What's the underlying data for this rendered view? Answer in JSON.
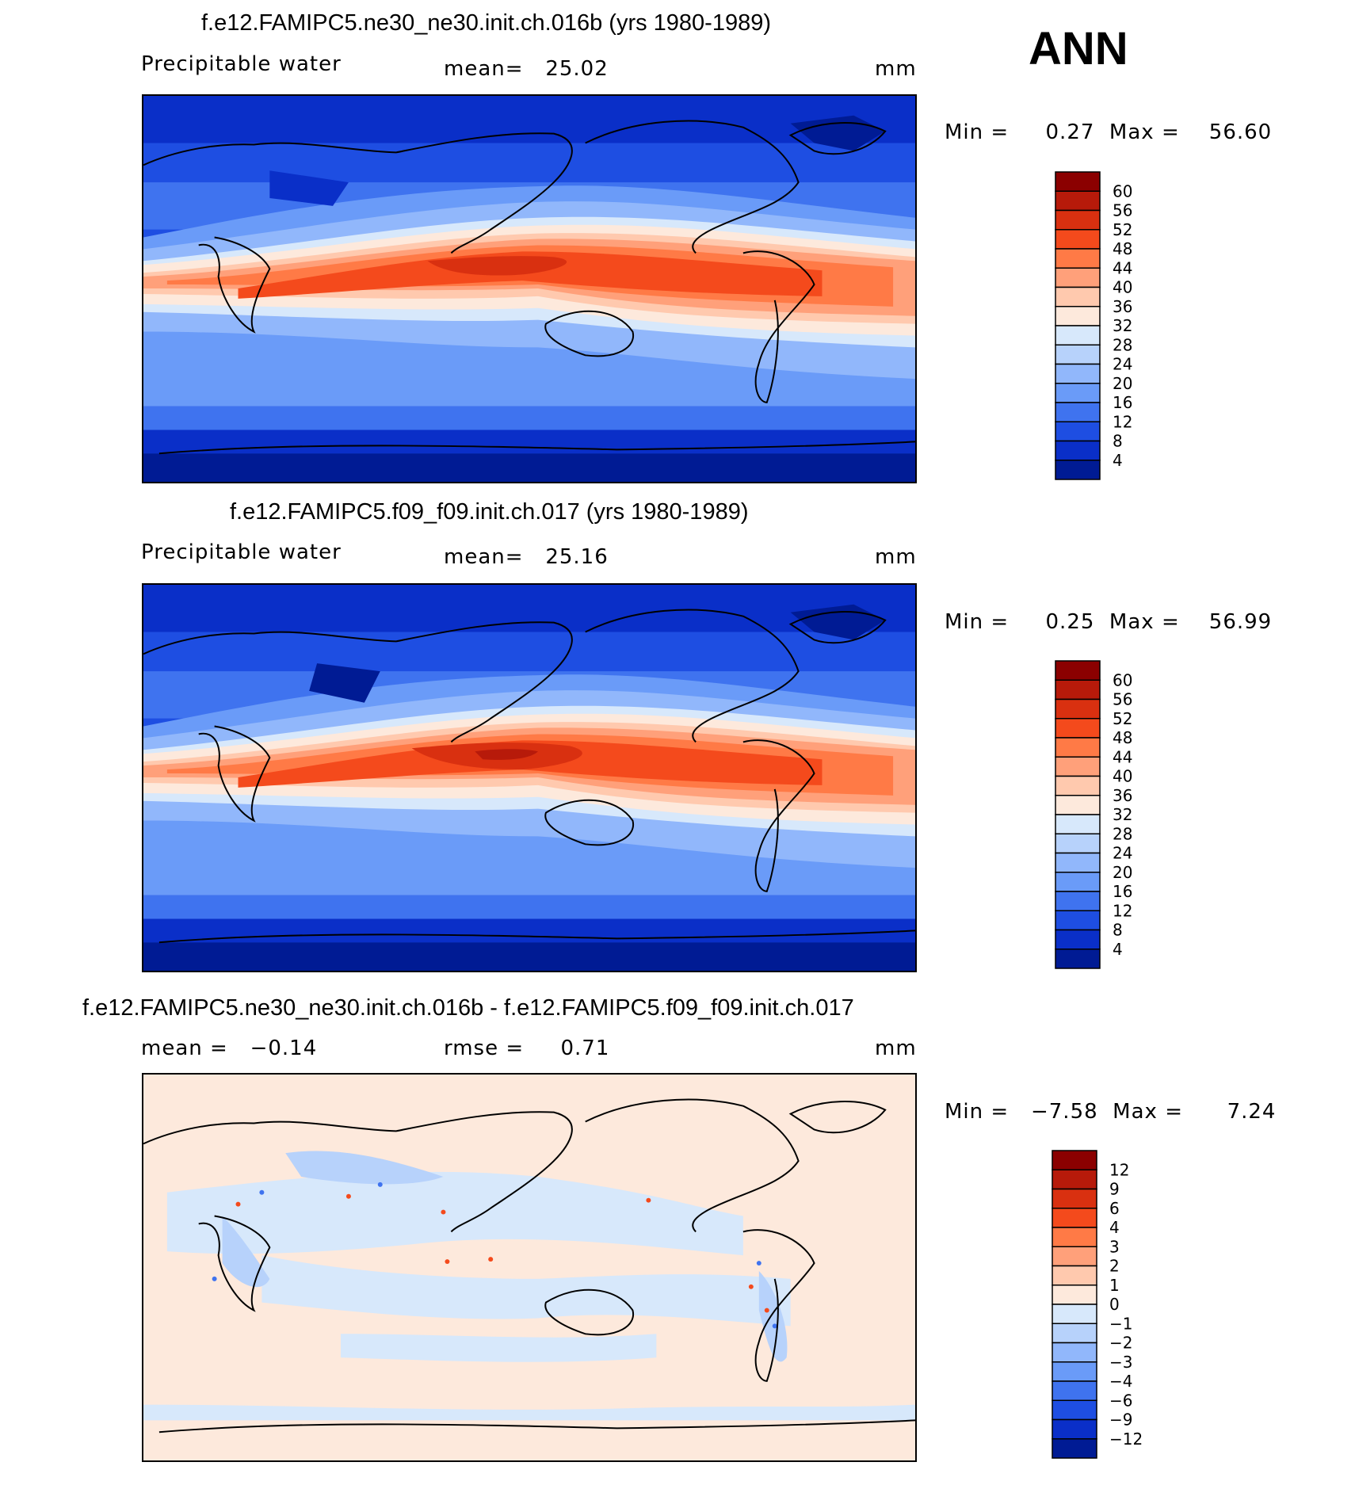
{
  "season": "ANN",
  "panels": [
    {
      "title": "f.e12.FAMIPC5.ne30_ne30.init.ch.016b (yrs 1980-1989)",
      "left_label": "Precipitable water",
      "center_label": "mean=   25.02",
      "units": "mm",
      "stats": "Min =     0.27  Max =    56.60",
      "colorbar_levels": [
        "60",
        "56",
        "52",
        "48",
        "44",
        "40",
        "36",
        "32",
        "28",
        "24",
        "20",
        "16",
        "12",
        "8",
        "4"
      ],
      "colorbar_colors": [
        "#8b0000",
        "#b71a0a",
        "#d93010",
        "#f44a1c",
        "#ff7a46",
        "#ffa07a",
        "#ffc9ae",
        "#fde9dc",
        "#d7e8fb",
        "#b7d2fb",
        "#91b7fb",
        "#6a9bf8",
        "#3f73ef",
        "#1e4ee2",
        "#0a2fc8",
        "#001b94"
      ]
    },
    {
      "title": "f.e12.FAMIPC5.f09_f09.init.ch.017 (yrs 1980-1989)",
      "left_label": "Precipitable water",
      "center_label": "mean=   25.16",
      "units": "mm",
      "stats": "Min =     0.25  Max =    56.99",
      "colorbar_levels": [
        "60",
        "56",
        "52",
        "48",
        "44",
        "40",
        "36",
        "32",
        "28",
        "24",
        "20",
        "16",
        "12",
        "8",
        "4"
      ],
      "colorbar_colors": [
        "#8b0000",
        "#b71a0a",
        "#d93010",
        "#f44a1c",
        "#ff7a46",
        "#ffa07a",
        "#ffc9ae",
        "#fde9dc",
        "#d7e8fb",
        "#b7d2fb",
        "#91b7fb",
        "#6a9bf8",
        "#3f73ef",
        "#1e4ee2",
        "#0a2fc8",
        "#001b94"
      ]
    },
    {
      "title": "f.e12.FAMIPC5.ne30_ne30.init.ch.016b - f.e12.FAMIPC5.f09_f09.init.ch.017",
      "left_label": "mean =   −0.14",
      "center_label": "rmse =     0.71",
      "units": "mm",
      "stats": "Min =   −7.58  Max =      7.24",
      "colorbar_levels": [
        "12",
        "9",
        "6",
        "4",
        "3",
        "2",
        "1",
        "0",
        "−1",
        "−2",
        "−3",
        "−4",
        "−6",
        "−9",
        "−12"
      ],
      "colorbar_colors": [
        "#8b0000",
        "#b71a0a",
        "#d93010",
        "#f44a1c",
        "#ff7a46",
        "#ffa07a",
        "#ffc9ae",
        "#fde9dc",
        "#d7e8fb",
        "#b7d2fb",
        "#91b7fb",
        "#6a9bf8",
        "#3f73ef",
        "#1e4ee2",
        "#0a2fc8",
        "#001b94"
      ]
    }
  ]
}
